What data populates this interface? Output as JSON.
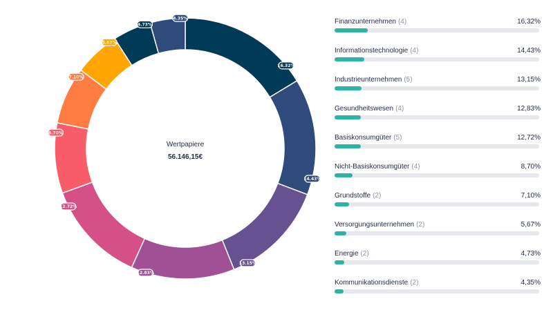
{
  "center": {
    "label": "Wertpapiere",
    "value": "56.146,15€"
  },
  "colors": {
    "bar_fill": "#2bb3a3",
    "bar_track": "#e6e8ec",
    "text": "#1f2a44",
    "muted": "#8b94a3"
  },
  "chart_data": {
    "type": "pie",
    "variant": "donut",
    "title": "Wertpapiere",
    "total_label": "56.146,15€",
    "bar_scale_max": 100,
    "segments": [
      {
        "name": "Finanzunternehmen",
        "count": "(4)",
        "value": 16.32,
        "label": "16,32%",
        "slice_label": "16.32%",
        "color": "#003a56"
      },
      {
        "name": "Informationstechnologie",
        "count": "(4)",
        "value": 14.43,
        "label": "14,43%",
        "slice_label": "14.43%",
        "color": "#2f4b7c"
      },
      {
        "name": "Industrieunternehmen",
        "count": "(5)",
        "value": 13.15,
        "label": "13,15%",
        "slice_label": "13.15%",
        "color": "#665191"
      },
      {
        "name": "Gesundheitswesen",
        "count": "(4)",
        "value": 12.83,
        "label": "12,83%",
        "slice_label": "12.83%",
        "color": "#a05195"
      },
      {
        "name": "Basiskonsumgüter",
        "count": "(5)",
        "value": 12.72,
        "label": "12,72%",
        "slice_label": "12.72%",
        "color": "#d45087"
      },
      {
        "name": "Nicht-Basiskonsumgüter",
        "count": "(4)",
        "value": 8.7,
        "label": "8,70%",
        "slice_label": "8.70%",
        "color": "#f95d6a"
      },
      {
        "name": "Grundstoffe",
        "count": "(2)",
        "value": 7.1,
        "label": "7,10%",
        "slice_label": "7.10%",
        "color": "#ff7c43"
      },
      {
        "name": "Versorgungsunternehmen",
        "count": "(2)",
        "value": 5.67,
        "label": "5,67%",
        "slice_label": "5.67%",
        "color": "#ffa600"
      },
      {
        "name": "Energie",
        "count": "(2)",
        "value": 4.73,
        "label": "4,73%",
        "slice_label": "4.73%",
        "color": "#003a56"
      },
      {
        "name": "Kommunikationsdienste",
        "count": "(2)",
        "value": 4.35,
        "label": "4,35%",
        "slice_label": "4.35%",
        "color": "#2f4b7c"
      }
    ]
  }
}
